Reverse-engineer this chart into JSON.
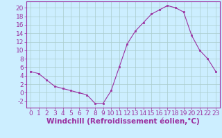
{
  "x": [
    0,
    1,
    2,
    3,
    4,
    5,
    6,
    7,
    8,
    9,
    10,
    11,
    12,
    13,
    14,
    15,
    16,
    17,
    18,
    19,
    20,
    21,
    22,
    23
  ],
  "y": [
    5,
    4.5,
    3,
    1.5,
    1,
    0.5,
    0,
    -0.5,
    -2.5,
    -2.5,
    0.5,
    6,
    11.5,
    14.5,
    16.5,
    18.5,
    19.5,
    20.5,
    20,
    19,
    13.5,
    10,
    8,
    5
  ],
  "xlabel": "Windchill (Refroidissement éolien,°C)",
  "xlim": [
    -0.5,
    23.5
  ],
  "ylim": [
    -3.5,
    21.5
  ],
  "xticks": [
    0,
    1,
    2,
    3,
    4,
    5,
    6,
    7,
    8,
    9,
    10,
    11,
    12,
    13,
    14,
    15,
    16,
    17,
    18,
    19,
    20,
    21,
    22,
    23
  ],
  "yticks": [
    -2,
    0,
    2,
    4,
    6,
    8,
    10,
    12,
    14,
    16,
    18,
    20
  ],
  "line_color": "#9b30a0",
  "marker_color": "#9b30a0",
  "bg_color": "#cceeff",
  "grid_color": "#aacccc",
  "tick_label_fontsize": 6.5,
  "xlabel_fontsize": 7.5
}
